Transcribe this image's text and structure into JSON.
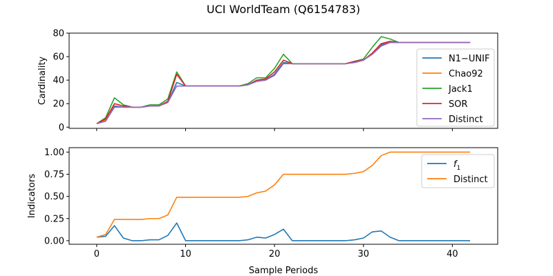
{
  "figure_title": "UCI WorldTeam (Q6154783)",
  "chart_data": [
    {
      "type": "line",
      "ylabel": "Cardinality",
      "xlabel": "",
      "xlim": [
        -3.1,
        45.1
      ],
      "ylim": [
        -1,
        80
      ],
      "xticks": [
        0,
        10,
        20,
        30,
        40
      ],
      "show_xtick_labels": false,
      "yticks": [
        0,
        20,
        40,
        60,
        80
      ],
      "ytick_labels": [
        "0",
        "20",
        "40",
        "60",
        "80"
      ],
      "legend_position": "center-right",
      "x": [
        0,
        1,
        2,
        3,
        4,
        5,
        6,
        7,
        8,
        9,
        10,
        11,
        12,
        13,
        14,
        15,
        16,
        17,
        18,
        19,
        20,
        21,
        22,
        23,
        24,
        25,
        26,
        27,
        28,
        29,
        30,
        31,
        32,
        33,
        34,
        35,
        36,
        37,
        38,
        39,
        40,
        41,
        42
      ],
      "series": [
        {
          "name": "N1−UNIF",
          "color": "#1f77b4",
          "values": [
            3,
            6,
            18,
            17,
            17,
            17,
            18,
            18,
            21,
            38,
            35,
            35,
            35,
            35,
            35,
            35,
            35,
            36,
            39,
            40,
            45,
            55,
            54,
            54,
            54,
            54,
            54,
            54,
            54,
            55,
            57,
            63,
            70,
            72,
            72,
            72,
            72,
            72,
            72,
            72,
            72,
            72,
            72
          ]
        },
        {
          "name": "Chao92",
          "color": "#ff7f0e",
          "values": [
            3,
            6,
            20,
            18,
            17,
            17,
            18,
            18,
            22,
            45,
            35,
            35,
            35,
            35,
            35,
            35,
            35,
            36,
            40,
            41,
            47,
            57,
            54,
            54,
            54,
            54,
            54,
            54,
            54,
            56,
            57,
            63,
            71,
            73,
            72,
            72,
            72,
            72,
            72,
            72,
            72,
            72,
            72
          ]
        },
        {
          "name": "Jack1",
          "color": "#2ca02c",
          "values": [
            3,
            8,
            25,
            19,
            17,
            17,
            19,
            19,
            24,
            47,
            35,
            35,
            35,
            35,
            35,
            35,
            35,
            37,
            42,
            42,
            50,
            62,
            54,
            54,
            54,
            54,
            54,
            54,
            54,
            56,
            58,
            68,
            77,
            75,
            72,
            72,
            72,
            72,
            72,
            72,
            72,
            72,
            72
          ]
        },
        {
          "name": "SOR",
          "color": "#d62728",
          "values": [
            3,
            7,
            20,
            18,
            17,
            17,
            18,
            18,
            22,
            45,
            35,
            35,
            35,
            35,
            35,
            35,
            35,
            36,
            40,
            41,
            47,
            57,
            54,
            54,
            54,
            54,
            54,
            54,
            54,
            56,
            57,
            63,
            71,
            73,
            72,
            72,
            72,
            72,
            72,
            72,
            72,
            72,
            72
          ]
        },
        {
          "name": "Distinct",
          "color": "#9467bd",
          "values": [
            3,
            5,
            17,
            17,
            17,
            17,
            18,
            18,
            21,
            35,
            35,
            35,
            35,
            35,
            35,
            35,
            35,
            36,
            39,
            40,
            44,
            54,
            54,
            54,
            54,
            54,
            54,
            54,
            54,
            55,
            57,
            62,
            69,
            72,
            72,
            72,
            72,
            72,
            72,
            72,
            72,
            72,
            72
          ]
        }
      ]
    },
    {
      "type": "line",
      "ylabel": "Indicators",
      "xlabel": "Sample Periods",
      "xlim": [
        -3.1,
        45.1
      ],
      "ylim": [
        -0.04,
        1.05
      ],
      "xticks": [
        0,
        10,
        20,
        30,
        40
      ],
      "xtick_labels": [
        "0",
        "10",
        "20",
        "30",
        "40"
      ],
      "show_xtick_labels": true,
      "yticks": [
        0,
        0.25,
        0.5,
        0.75,
        1.0
      ],
      "ytick_labels": [
        "0.00",
        "0.25",
        "0.50",
        "0.75",
        "1.00"
      ],
      "legend_position": "top-right",
      "x": [
        0,
        1,
        2,
        3,
        4,
        5,
        6,
        7,
        8,
        9,
        10,
        11,
        12,
        13,
        14,
        15,
        16,
        17,
        18,
        19,
        20,
        21,
        22,
        23,
        24,
        25,
        26,
        27,
        28,
        29,
        30,
        31,
        32,
        33,
        34,
        35,
        36,
        37,
        38,
        39,
        40,
        41,
        42
      ],
      "series": [
        {
          "name": "f1",
          "name_main": "f",
          "name_sub": "1",
          "color": "#1f77b4",
          "values": [
            0.04,
            0.05,
            0.17,
            0.03,
            0.0,
            0.0,
            0.01,
            0.01,
            0.06,
            0.2,
            0.0,
            0.0,
            0.0,
            0.0,
            0.0,
            0.0,
            0.0,
            0.01,
            0.04,
            0.03,
            0.07,
            0.13,
            0.0,
            0.0,
            0.0,
            0.0,
            0.0,
            0.0,
            0.0,
            0.01,
            0.03,
            0.1,
            0.11,
            0.04,
            0.0,
            0.0,
            0.0,
            0.0,
            0.0,
            0.0,
            0.0,
            0.0,
            0.0
          ]
        },
        {
          "name": "Distinct",
          "color": "#ff7f0e",
          "values": [
            0.04,
            0.07,
            0.24,
            0.24,
            0.24,
            0.24,
            0.25,
            0.25,
            0.29,
            0.49,
            0.49,
            0.49,
            0.49,
            0.49,
            0.49,
            0.49,
            0.49,
            0.5,
            0.54,
            0.56,
            0.63,
            0.75,
            0.75,
            0.75,
            0.75,
            0.75,
            0.75,
            0.75,
            0.75,
            0.76,
            0.78,
            0.85,
            0.96,
            1.0,
            1.0,
            1.0,
            1.0,
            1.0,
            1.0,
            1.0,
            1.0,
            1.0,
            1.0
          ]
        }
      ]
    }
  ]
}
